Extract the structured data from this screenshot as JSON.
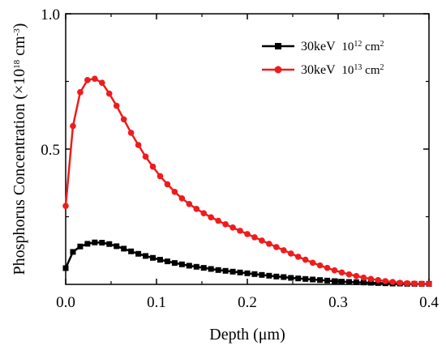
{
  "chart_data": {
    "type": "line",
    "xlabel": "Depth (μm)",
    "ylabel_main": "Phosphorus Concentration (×10",
    "ylabel_exp1": "18",
    "ylabel_mid": " cm",
    "ylabel_exp2": "-3",
    "ylabel_end": ")",
    "xlim": [
      0.0,
      0.4
    ],
    "ylim": [
      0.0,
      1.0
    ],
    "x_ticks": [
      "0.0",
      "0.1",
      "0.2",
      "0.3",
      "0.4"
    ],
    "y_ticks": [
      "0.5",
      "1.0"
    ],
    "legend_position": "top-right",
    "grid": false,
    "series": [
      {
        "name_energy": "30keV",
        "name_dose_base": "10",
        "name_dose_exp": "12",
        "name_unit": " cm",
        "name_unit_exp": "2",
        "color": "#000000",
        "marker": "square",
        "x": [
          0.0,
          0.008,
          0.016,
          0.024,
          0.032,
          0.04,
          0.048,
          0.056,
          0.064,
          0.072,
          0.08,
          0.088,
          0.096,
          0.104,
          0.112,
          0.12,
          0.128,
          0.136,
          0.144,
          0.152,
          0.16,
          0.168,
          0.176,
          0.184,
          0.192,
          0.2,
          0.208,
          0.216,
          0.224,
          0.232,
          0.24,
          0.248,
          0.256,
          0.264,
          0.272,
          0.28,
          0.288,
          0.296,
          0.304,
          0.312,
          0.32,
          0.328,
          0.336,
          0.344,
          0.352,
          0.36,
          0.368,
          0.376,
          0.384,
          0.392,
          0.4
        ],
        "y": [
          0.06,
          0.12,
          0.14,
          0.15,
          0.155,
          0.154,
          0.149,
          0.141,
          0.132,
          0.122,
          0.113,
          0.105,
          0.098,
          0.091,
          0.085,
          0.079,
          0.074,
          0.069,
          0.065,
          0.061,
          0.057,
          0.053,
          0.05,
          0.047,
          0.044,
          0.041,
          0.038,
          0.035,
          0.032,
          0.029,
          0.027,
          0.024,
          0.022,
          0.02,
          0.018,
          0.016,
          0.014,
          0.012,
          0.01,
          0.009,
          0.008,
          0.007,
          0.006,
          0.005,
          0.004,
          0.003,
          0.003,
          0.002,
          0.002,
          0.002,
          0.002
        ]
      },
      {
        "name_energy": "30keV",
        "name_dose_base": "10",
        "name_dose_exp": "13",
        "name_unit": " cm",
        "name_unit_exp": "2",
        "color": "#ee1c1c",
        "marker": "circle",
        "x": [
          0.0,
          0.008,
          0.016,
          0.024,
          0.032,
          0.04,
          0.048,
          0.056,
          0.064,
          0.072,
          0.08,
          0.088,
          0.096,
          0.104,
          0.112,
          0.12,
          0.128,
          0.136,
          0.144,
          0.152,
          0.16,
          0.168,
          0.176,
          0.184,
          0.192,
          0.2,
          0.208,
          0.216,
          0.224,
          0.232,
          0.24,
          0.248,
          0.256,
          0.264,
          0.272,
          0.28,
          0.288,
          0.296,
          0.304,
          0.312,
          0.32,
          0.328,
          0.336,
          0.344,
          0.352,
          0.36,
          0.368,
          0.376,
          0.384,
          0.392,
          0.4
        ],
        "y": [
          0.29,
          0.585,
          0.71,
          0.755,
          0.76,
          0.745,
          0.705,
          0.66,
          0.61,
          0.56,
          0.515,
          0.472,
          0.435,
          0.4,
          0.37,
          0.342,
          0.318,
          0.297,
          0.279,
          0.263,
          0.248,
          0.235,
          0.222,
          0.21,
          0.198,
          0.186,
          0.174,
          0.162,
          0.15,
          0.138,
          0.126,
          0.114,
          0.102,
          0.091,
          0.08,
          0.07,
          0.061,
          0.052,
          0.044,
          0.037,
          0.031,
          0.025,
          0.02,
          0.016,
          0.012,
          0.009,
          0.006,
          0.004,
          0.003,
          0.002,
          0.002
        ]
      }
    ]
  }
}
